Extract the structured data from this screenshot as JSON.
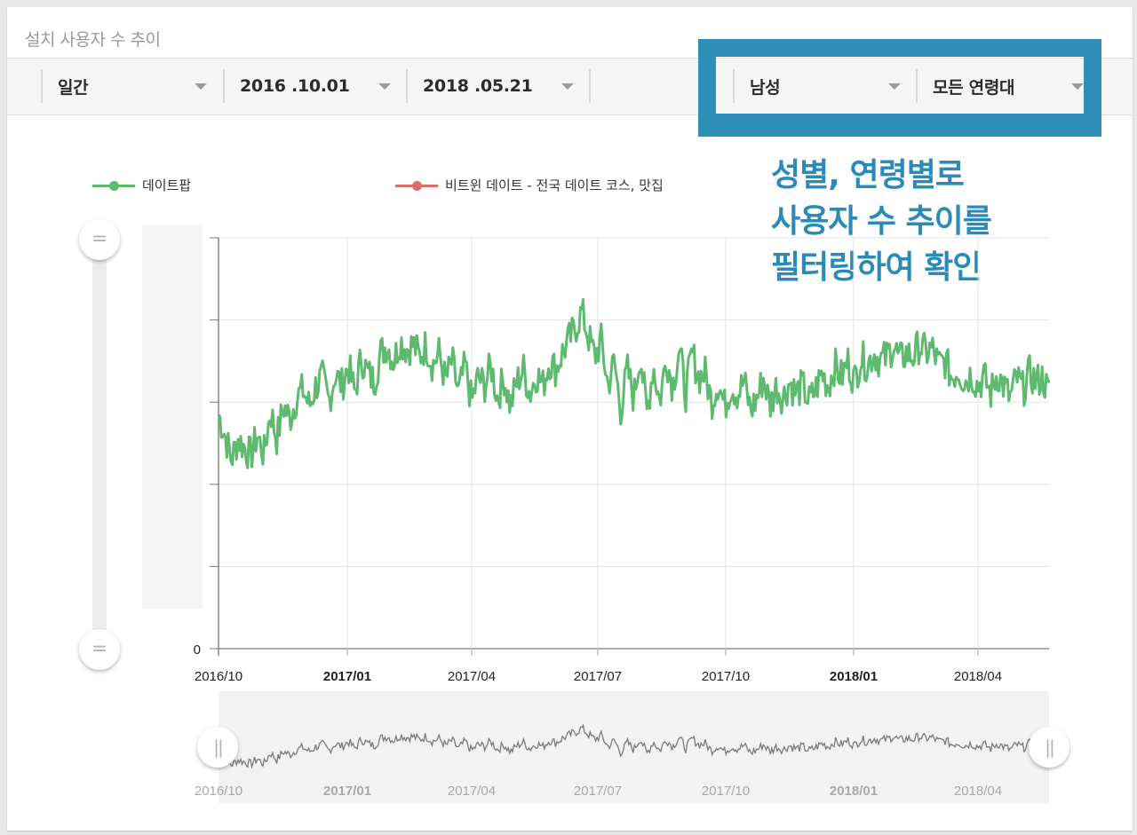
{
  "card": {
    "title": "설치 사용자 수 추이"
  },
  "filters": {
    "period": {
      "label": "일간",
      "caret": "dropdown-caret"
    },
    "start_date": {
      "label": "2016 .10.01",
      "caret": "dropdown-caret"
    },
    "end_date": {
      "label": "2018 .05.21",
      "caret": "dropdown-caret"
    },
    "gender": {
      "label": "남성",
      "caret": "dropdown-caret"
    },
    "age_group": {
      "label": "모든 연령대",
      "caret": "dropdown-caret"
    }
  },
  "annotation": {
    "lines": [
      "성별, 연령별로",
      "사용자 수 추이를",
      "필터링하여 확인"
    ],
    "color": "#2a8ab8",
    "box_color": "#2f8fb8"
  },
  "slider_handles": {
    "vertical_top": "=",
    "vertical_bottom": "=",
    "nav_left": "||",
    "nav_right": "||"
  },
  "colors": {
    "series_1": "#5dba6e",
    "series_2": "#dc6b6b",
    "navigator_line": "#7a7a7a",
    "grid": "#e3e3e3",
    "axis": "#777777"
  },
  "chart_data": {
    "type": "line",
    "title": "설치 사용자 수 추이",
    "xlabel": "",
    "ylabel": "",
    "y_tick_labels": [
      "0"
    ],
    "ylim": [
      0,
      5
    ],
    "y_gridlines": 6,
    "grid": true,
    "legend_position": "top",
    "x_range": [
      "2016-10-01",
      "2018-05-21"
    ],
    "x_ticks": [
      {
        "label": "2016/10",
        "bold": false
      },
      {
        "label": "2017/01",
        "bold": true
      },
      {
        "label": "2017/04",
        "bold": false
      },
      {
        "label": "2017/07",
        "bold": false
      },
      {
        "label": "2017/10",
        "bold": false
      },
      {
        "label": "2018/01",
        "bold": true
      },
      {
        "label": "2018/04",
        "bold": false
      }
    ],
    "series": [
      {
        "name": "데이트팝",
        "color": "#5dba6e",
        "note": "relative values (y-axis labels hidden); sampled roughly every 6 days",
        "values": [
          2.85,
          2.6,
          2.3,
          2.55,
          2.45,
          2.35,
          2.6,
          2.35,
          2.9,
          2.55,
          2.95,
          2.8,
          3.05,
          3.15,
          2.95,
          3.2,
          3.3,
          3.0,
          3.35,
          3.2,
          3.45,
          3.1,
          3.55,
          3.35,
          3.25,
          3.6,
          3.7,
          3.5,
          3.75,
          3.65,
          3.7,
          3.55,
          3.7,
          3.45,
          3.6,
          3.25,
          3.5,
          3.1,
          3.45,
          3.0,
          3.3,
          3.2,
          3.45,
          3.05,
          3.3,
          2.95,
          3.25,
          3.4,
          3.1,
          3.35,
          3.2,
          3.5,
          3.4,
          3.6,
          3.75,
          3.9,
          4.1,
          3.8,
          3.55,
          3.75,
          3.2,
          3.5,
          2.9,
          3.4,
          3.05,
          3.6,
          2.85,
          3.45,
          3.0,
          3.55,
          3.2,
          3.65,
          3.1,
          3.6,
          3.3,
          3.35,
          3.0,
          3.25,
          2.95,
          3.2,
          3.1,
          3.25,
          2.9,
          3.05,
          3.3,
          2.95,
          3.2,
          3.05,
          3.25,
          3.1,
          3.2,
          3.0,
          3.15,
          3.35,
          3.2,
          3.45,
          3.3,
          3.5,
          3.25,
          3.55,
          3.45,
          3.6,
          3.5,
          3.55,
          3.7,
          3.5,
          3.6,
          3.55,
          3.7,
          3.6,
          3.65,
          3.45,
          3.5,
          3.3,
          3.4,
          3.25,
          3.35,
          3.2,
          3.3,
          3.1,
          3.35,
          3.2,
          3.05,
          3.3,
          3.15,
          3.35,
          3.25,
          3.3,
          3.1
        ]
      },
      {
        "name": "비트윈 데이트 - 전국 데이트 코스, 맛집",
        "color": "#dc6b6b",
        "values": []
      }
    ]
  },
  "navigator": {
    "x_ticks": [
      {
        "label": "2016/10",
        "bold": false
      },
      {
        "label": "2017/01",
        "bold": true
      },
      {
        "label": "2017/04",
        "bold": false
      },
      {
        "label": "2017/07",
        "bold": false
      },
      {
        "label": "2017/10",
        "bold": false
      },
      {
        "label": "2018/01",
        "bold": true
      },
      {
        "label": "2018/04",
        "bold": false
      }
    ]
  }
}
